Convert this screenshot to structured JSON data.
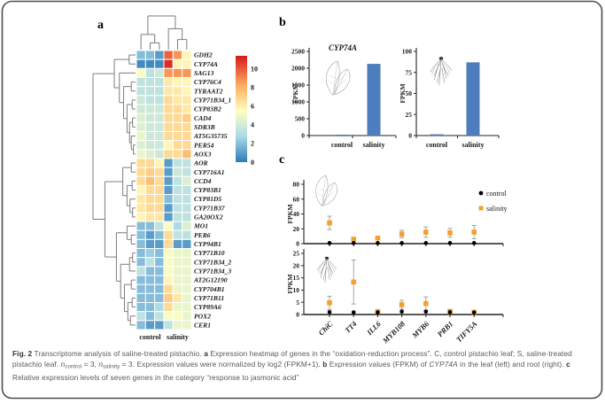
{
  "panels": {
    "a": "a",
    "b": "b",
    "c": "c"
  },
  "chart_data": [
    {
      "id": "heatmap_a",
      "type": "heatmap",
      "title_context": "oxidation-reduction process genes",
      "genes": [
        "GDH2",
        "CYP74A",
        "SAG13",
        "CYP76C4",
        "TYRAAT2",
        "CYP71B34_1",
        "CYP83B2",
        "CAD4",
        "SDR3B",
        "AT5G35735",
        "PER54",
        "AOX3",
        "AOR",
        "CYP716A1",
        "CCD4",
        "CYP83B1",
        "CYP81D5",
        "CYP71B37",
        "GA20OX2",
        "MO1",
        "PER6",
        "CYP94B1",
        "CYP71B10",
        "CYP71B34_2",
        "CYP71B34_3",
        "AT2G12190",
        "CYP704B1",
        "CYP71B11",
        "CYP89A6",
        "POX2",
        "CER1"
      ],
      "group_labels": [
        "control",
        "salinity"
      ],
      "columns_per_group": 3,
      "values": [
        [
          2,
          2,
          1,
          10,
          9,
          6
        ],
        [
          0.5,
          0.5,
          0.5,
          11,
          6,
          6
        ],
        [
          5.5,
          3.5,
          4,
          9,
          9,
          9
        ],
        [
          3.5,
          3.5,
          3.5,
          6.5,
          6,
          6
        ],
        [
          3.5,
          3.5,
          3.5,
          6.5,
          6.5,
          6
        ],
        [
          4,
          3.5,
          3.5,
          7,
          6.5,
          6.5
        ],
        [
          4,
          4,
          4,
          7,
          7,
          6.5
        ],
        [
          4.5,
          4,
          4,
          7,
          7,
          7.5
        ],
        [
          4.5,
          4,
          4,
          7,
          7,
          7
        ],
        [
          5,
          4,
          4,
          7,
          7,
          7
        ],
        [
          4.5,
          4,
          4,
          6,
          7,
          7
        ],
        [
          5,
          4.5,
          4,
          7,
          7,
          8
        ],
        [
          7,
          7,
          6,
          1,
          3.5,
          3.5
        ],
        [
          7,
          7.5,
          7,
          1,
          4,
          3.5
        ],
        [
          7,
          8,
          7,
          1,
          3.5,
          4.5
        ],
        [
          6,
          7,
          7,
          1,
          3.5,
          3.5
        ],
        [
          6.5,
          7,
          7,
          2,
          3.5,
          3.5
        ],
        [
          6.5,
          7,
          7,
          1,
          3.5,
          3.5
        ],
        [
          6,
          6.5,
          6.5,
          1,
          3.5,
          3.5
        ],
        [
          2,
          2,
          3.5,
          5.5,
          3,
          4.5
        ],
        [
          2,
          1,
          2,
          7,
          3.5,
          3.5
        ],
        [
          2,
          1,
          1,
          7,
          1,
          1
        ],
        [
          2,
          2.5,
          2,
          5.5,
          5,
          5
        ],
        [
          2,
          3.5,
          2,
          5.5,
          5,
          5
        ],
        [
          3.5,
          2,
          2,
          5.5,
          5,
          5
        ],
        [
          2,
          2,
          2,
          6,
          5,
          5
        ],
        [
          2,
          2,
          2,
          7,
          5,
          5
        ],
        [
          2,
          2,
          2,
          7.5,
          6.5,
          5
        ],
        [
          2,
          2,
          3,
          7,
          5,
          5
        ],
        [
          3.5,
          2,
          3.5,
          5.5,
          5.5,
          5
        ],
        [
          2,
          1,
          1,
          3.5,
          5,
          5
        ]
      ],
      "scale_ticks": [
        10,
        8,
        6,
        4,
        2,
        0
      ],
      "scale_range": [
        0,
        11.4
      ],
      "colormap": [
        "#2c7bb6",
        "#abd9e9",
        "#ffffbf",
        "#fdae61",
        "#d7191c"
      ],
      "normalization": "log2 (FPKM+1)"
    },
    {
      "id": "b_left",
      "type": "bar",
      "title": "CYP74A",
      "ylabel": "FPKM",
      "categories": [
        "control",
        "salinity"
      ],
      "values": [
        8,
        2130
      ],
      "ylim": [
        0,
        2500
      ],
      "yticks": [
        0,
        500,
        1000,
        1500,
        2000,
        2500
      ],
      "bar_color": "#4E7DBE",
      "icon": "leaf"
    },
    {
      "id": "b_right",
      "type": "bar",
      "ylabel": "FPKM",
      "categories": [
        "control",
        "salinity"
      ],
      "values": [
        1.5,
        87
      ],
      "ylim": [
        0,
        100
      ],
      "yticks": [
        0,
        25,
        50,
        75,
        100
      ],
      "bar_color": "#4E7DBE",
      "icon": "root"
    },
    {
      "id": "c_top",
      "type": "scatter",
      "ylabel": "FPKM",
      "categories": [
        "ChiC",
        "TT4",
        "ILL6",
        "MYB108",
        "MYB6",
        "PRB1",
        "TIFY5A"
      ],
      "ylim": [
        0,
        80
      ],
      "yticks": [
        0,
        20,
        40,
        60,
        80
      ],
      "icon": "leaf",
      "show_x_labels": false,
      "series": [
        {
          "name": "control",
          "marker": "circle",
          "color": "#000000",
          "values": [
            0.8,
            0.8,
            0.8,
            0.8,
            0.8,
            0.8,
            0.8
          ],
          "errors": [
            0,
            0,
            0,
            0,
            0,
            0,
            0
          ]
        },
        {
          "name": "salinity",
          "marker": "square",
          "color": "#F4A02C",
          "values": [
            28,
            6,
            7.5,
            13,
            15.5,
            14.5,
            15.5
          ],
          "errors": [
            9,
            2.5,
            1.5,
            5,
            7,
            6,
            9
          ]
        }
      ]
    },
    {
      "id": "c_bottom",
      "type": "scatter",
      "ylabel": "FPKM",
      "categories": [
        "ChiC",
        "TT4",
        "ILL6",
        "MYB108",
        "MYB6",
        "PRB1",
        "TIFY5A"
      ],
      "ylim": [
        0,
        25
      ],
      "yticks": [
        0,
        5,
        10,
        15,
        20,
        25
      ],
      "icon": "root",
      "show_x_labels": true,
      "series": [
        {
          "name": "control",
          "marker": "circle",
          "color": "#000000",
          "values": [
            1,
            0.9,
            0.9,
            1.2,
            1.2,
            1,
            0.8
          ],
          "errors": [
            0,
            0,
            0,
            0,
            0,
            0,
            0
          ]
        },
        {
          "name": "salinity",
          "marker": "square",
          "color": "#F4A02C",
          "values": [
            4.8,
            13.3,
            1.2,
            4,
            4.5,
            1.3,
            1
          ],
          "errors": [
            2.7,
            9,
            0.5,
            1.8,
            2.7,
            0.5,
            0.8
          ]
        }
      ]
    }
  ],
  "legend": {
    "entries": [
      {
        "label": "control",
        "marker": "circle",
        "color": "#000000"
      },
      {
        "label": "salinity",
        "marker": "square",
        "color": "#F4A02C"
      }
    ]
  },
  "trees": {
    "col": {
      "h": 1,
      "c": [
        {
          "h": 0.45,
          "c": [
            0,
            {
              "h": 0.2,
              "c": [
                1,
                2
              ]
            }
          ]
        },
        {
          "h": 0.62,
          "c": [
            3,
            {
              "h": 0.3,
              "c": [
                4,
                5
              ]
            }
          ]
        }
      ]
    },
    "row": {
      "h": 1,
      "c": [
        {
          "h": 0.5,
          "c": [
            {
              "h": 0.15,
              "c": [
                0,
                1
              ]
            },
            {
              "h": 0.38,
              "c": [
                2,
                {
                  "h": 0.28,
                  "c": [
                    {
                      "h": 0.1,
                      "c": [
                        3,
                        4
                      ]
                    },
                    {
                      "h": 0.2,
                      "c": [
                        {
                          "h": 0.08,
                          "c": [
                            5,
                            6
                          ]
                        },
                        {
                          "h": 0.14,
                          "c": [
                            {
                              "h": 0.07,
                              "c": [
                                7,
                                8
                              ]
                            },
                            {
                              "h": 0.1,
                              "c": [
                                9,
                                {
                                  "h": 0.05,
                                  "c": [
                                    10,
                                    11
                                  ]
                                }
                              ]
                            }
                          ]
                        }
                      ]
                    }
                  ]
                }
              ]
            }
          ]
        },
        {
          "h": 0.72,
          "c": [
            {
              "h": 0.3,
              "c": [
                {
                  "h": 0.1,
                  "c": [
                    12,
                    13
                  ]
                },
                {
                  "h": 0.2,
                  "c": [
                    {
                      "h": 0.08,
                      "c": [
                        14,
                        15
                      ]
                    },
                    {
                      "h": 0.13,
                      "c": [
                        16,
                        {
                          "h": 0.07,
                          "c": [
                            17,
                            18
                          ]
                        }
                      ]
                    }
                  ]
                }
              ]
            },
            {
              "h": 0.45,
              "c": [
                {
                  "h": 0.2,
                  "c": [
                    19,
                    {
                      "h": 0.1,
                      "c": [
                        20,
                        21
                      ]
                    }
                  ]
                },
                {
                  "h": 0.35,
                  "c": [
                    {
                      "h": 0.14,
                      "c": [
                        {
                          "h": 0.07,
                          "c": [
                            22,
                            23
                          ]
                        },
                        24
                      ]
                    },
                    {
                      "h": 0.26,
                      "c": [
                        {
                          "h": 0.1,
                          "c": [
                            25,
                            26
                          ]
                        },
                        {
                          "h": 0.18,
                          "c": [
                            {
                              "h": 0.08,
                              "c": [
                                27,
                                28
                              ]
                            },
                            {
                              "h": 0.12,
                              "c": [
                                29,
                                30
                              ]
                            }
                          ]
                        }
                      ]
                    }
                  ]
                }
              ]
            }
          ]
        }
      ]
    }
  },
  "caption": {
    "segments": [
      {
        "t": "Fig. 2",
        "b": true
      },
      {
        "t": " Transcriptome analysis of saline-treated pistachio. "
      },
      {
        "t": "a",
        "b": true
      },
      {
        "t": " Expression heatmap of genes in the “oxidation-reduction process”. C, control pistachio leaf; S, saline-treated pistachio leaf. "
      },
      {
        "t": "n",
        "i": true
      },
      {
        "t": "control",
        "sub": true
      },
      {
        "t": " = 3, "
      },
      {
        "t": "n",
        "i": true
      },
      {
        "t": "salinity",
        "sub": true
      },
      {
        "t": " = 3. Expression values were normalized by log2 (FPKM+1). "
      },
      {
        "t": "b",
        "b": true
      },
      {
        "t": " Expression values (FPKM) of "
      },
      {
        "t": "CYP74A",
        "i": true
      },
      {
        "t": " in the leaf (left) and root (right). "
      },
      {
        "t": "c",
        "b": true
      },
      {
        "t": " Relative expression levels of seven genes in the category “response to jasmonic acid”"
      }
    ]
  }
}
